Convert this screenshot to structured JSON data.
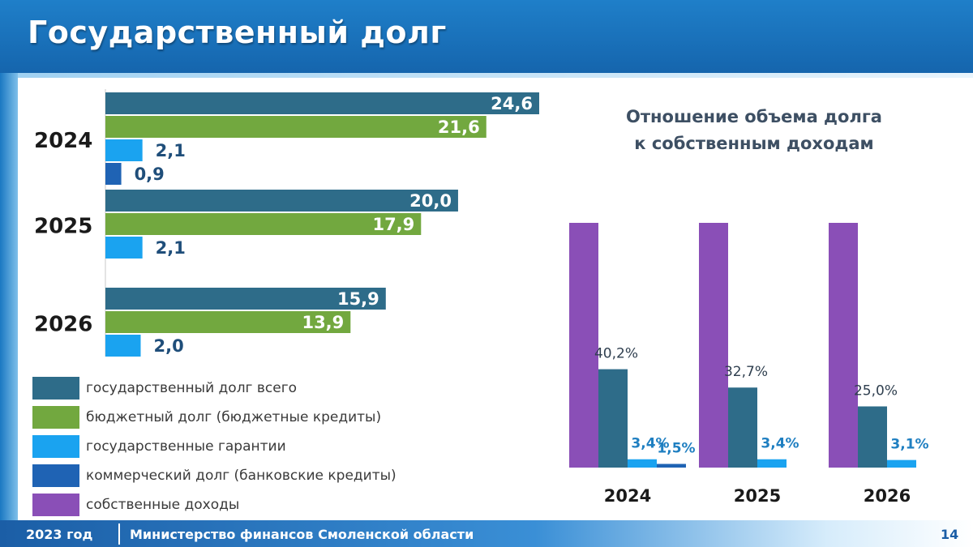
{
  "header": {
    "title": "Государственный долг"
  },
  "footer": {
    "year": "2023 год",
    "org": "Министерство финансов Смоленской области",
    "page": "14"
  },
  "colors": {
    "total": "#2e6c89",
    "budget": "#72a83f",
    "guarantees": "#1aa3f0",
    "commercial": "#1f63b4",
    "own_revenue": "#8a4fb7"
  },
  "legend": [
    {
      "key": "total",
      "label": "государственный долг всего"
    },
    {
      "key": "budget",
      "label": "бюджетный долг (бюджетные кредиты)"
    },
    {
      "key": "guarantees",
      "label": "государственные гарантии"
    },
    {
      "key": "commercial",
      "label": "коммерческий долг (банковские кредиты)"
    },
    {
      "key": "own_revenue",
      "label": "собственные доходы"
    }
  ],
  "chart_data": [
    {
      "type": "bar",
      "orientation": "horizontal",
      "categories": [
        "2024",
        "2025",
        "2026"
      ],
      "series": [
        {
          "name": "государственный долг всего",
          "key": "total",
          "values": [
            24.6,
            20.0,
            15.9
          ],
          "labels": [
            "24,6",
            "20,0",
            "15,9"
          ]
        },
        {
          "name": "бюджетный долг (бюджетные кредиты)",
          "key": "budget",
          "values": [
            21.6,
            17.9,
            13.9
          ],
          "labels": [
            "21,6",
            "17,9",
            "13,9"
          ]
        },
        {
          "name": "государственные гарантии",
          "key": "guarantees",
          "values": [
            2.1,
            2.1,
            2.0
          ],
          "labels": [
            "2,1",
            "2,1",
            "2,0"
          ]
        },
        {
          "name": "коммерческий долг (банковские кредиты)",
          "key": "commercial",
          "values": [
            0.9,
            null,
            null
          ],
          "labels": [
            "0,9",
            "",
            ""
          ]
        }
      ],
      "xlim": [
        0,
        24.6
      ]
    },
    {
      "type": "bar",
      "orientation": "vertical",
      "title_lines": [
        "Отношение объема долга",
        "к собственным доходам"
      ],
      "categories": [
        "2024",
        "2025",
        "2026"
      ],
      "series": [
        {
          "name": "собственные доходы",
          "key": "own_revenue",
          "values": [
            100,
            100,
            100
          ],
          "labels": [
            "",
            "",
            ""
          ]
        },
        {
          "name": "государственный долг всего",
          "key": "total",
          "values": [
            40.2,
            32.7,
            25.0
          ],
          "labels": [
            "40,2%",
            "32,7%",
            "25,0%"
          ]
        },
        {
          "name": "государственные гарантии",
          "key": "guarantees",
          "values": [
            3.4,
            3.4,
            3.1
          ],
          "labels": [
            "3,4%",
            "3,4%",
            "3,1%"
          ]
        },
        {
          "name": "коммерческий долг (банковские кредиты)",
          "key": "commercial",
          "values": [
            1.5,
            null,
            null
          ],
          "labels": [
            "1,5%",
            "",
            ""
          ]
        }
      ],
      "ylim": [
        0,
        100
      ]
    }
  ]
}
